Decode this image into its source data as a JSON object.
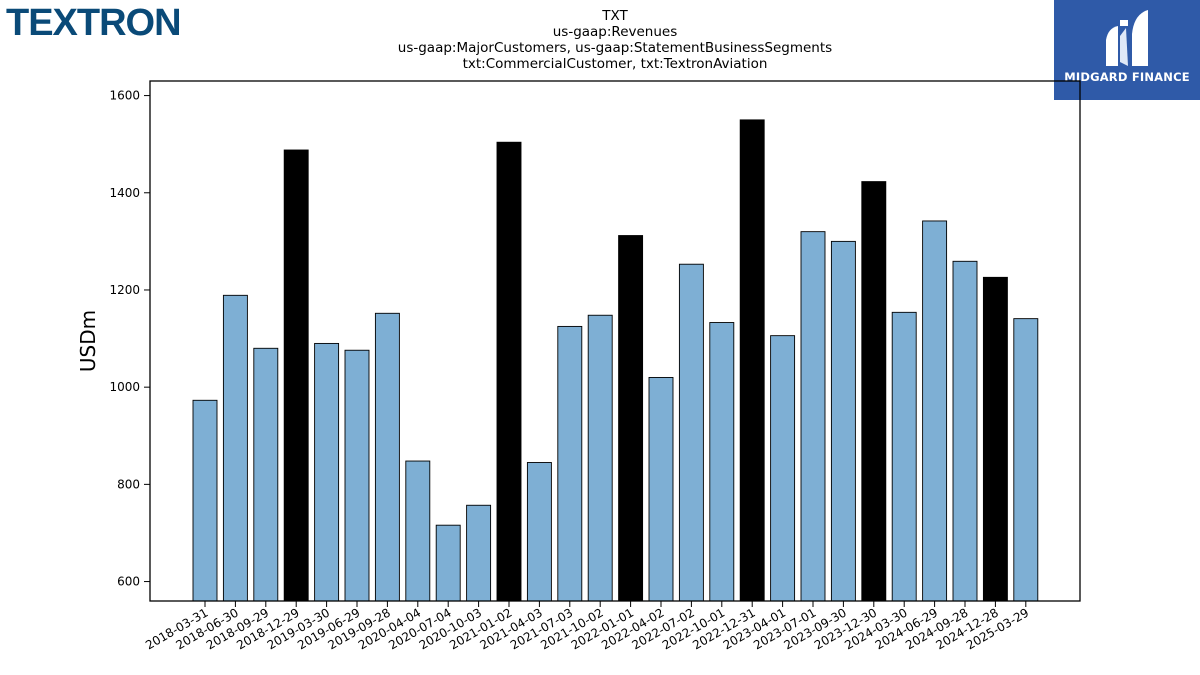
{
  "logo_left": {
    "text": "TEXTRON"
  },
  "logo_right": {
    "brand": "MIDGARD FINANCE",
    "icon": "midgard-logo-icon",
    "bg_color": "#2f5aa8"
  },
  "colors": {
    "regular": "#7eafd4",
    "highlight": "#000000",
    "edge": "#000000"
  },
  "chart_data": {
    "type": "bar",
    "title_lines": [
      "TXT",
      "us-gaap:Revenues",
      "us-gaap:MajorCustomers, us-gaap:StatementBusinessSegments",
      "txt:CommercialCustomer, txt:TextronAviation"
    ],
    "xlabel": "",
    "ylabel": "USDm",
    "ylim": [
      560,
      1630
    ],
    "yticks": [
      600,
      800,
      1000,
      1200,
      1400,
      1600
    ],
    "grid": false,
    "categories": [
      "2018-03-31",
      "2018-06-30",
      "2018-09-29",
      "2018-12-29",
      "2019-03-30",
      "2019-06-29",
      "2019-09-28",
      "2020-04-04",
      "2020-07-04",
      "2020-10-03",
      "2021-01-02",
      "2021-04-03",
      "2021-07-03",
      "2021-10-02",
      "2022-01-01",
      "2022-04-02",
      "2022-07-02",
      "2022-10-01",
      "2022-12-31",
      "2023-04-01",
      "2023-07-01",
      "2023-09-30",
      "2023-12-30",
      "2024-03-30",
      "2024-06-29",
      "2024-09-28",
      "2024-12-28",
      "2025-03-29"
    ],
    "values": [
      973,
      1189,
      1080,
      1488,
      1090,
      1076,
      1152,
      848,
      716,
      757,
      1504,
      845,
      1125,
      1148,
      1312,
      1020,
      1253,
      1133,
      1550,
      1106,
      1320,
      1300,
      1423,
      1154,
      1342,
      1259,
      1226,
      1141
    ],
    "highlighted": [
      false,
      false,
      false,
      true,
      false,
      false,
      false,
      false,
      false,
      false,
      true,
      false,
      false,
      false,
      true,
      false,
      false,
      false,
      true,
      false,
      false,
      false,
      true,
      false,
      false,
      false,
      true,
      false
    ]
  }
}
